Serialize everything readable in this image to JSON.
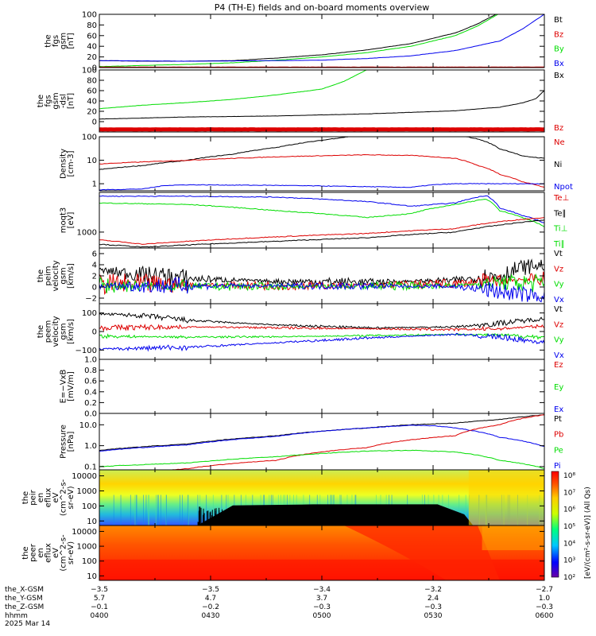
{
  "title": "P4 (TH-E) fields and on-board moments overview",
  "colors": {
    "black": "#000000",
    "red": "#dd0000",
    "green": "#00dd00",
    "blue": "#0000ee",
    "eph_blue": "#0000cc"
  },
  "chart_data": [
    {
      "type": "line",
      "name": "fgs_gsm",
      "ylabel": [
        "the",
        "fgs",
        "gsm",
        "[nT]"
      ],
      "ylim": [
        0,
        100
      ],
      "yticks": [
        "100",
        "80",
        "60",
        "40",
        "20",
        "0"
      ],
      "ytick_values": [
        100,
        80,
        60,
        40,
        20,
        0
      ],
      "legend": [
        {
          "text": "Bt",
          "color": "#000000"
        },
        {
          "text": "Bz",
          "color": "#dd0000"
        },
        {
          "text": "By",
          "color": "#00dd00"
        },
        {
          "text": "Bx",
          "color": "#0000ee"
        }
      ],
      "series": [
        {
          "name": "Bt",
          "color": "#000000",
          "x": [
            0,
            0.1,
            0.2,
            0.3,
            0.4,
            0.5,
            0.6,
            0.7,
            0.8,
            0.85,
            0.9
          ],
          "y": [
            13,
            12,
            12,
            13,
            18,
            24,
            33,
            45,
            65,
            82,
            104
          ]
        },
        {
          "name": "By",
          "color": "#00dd00",
          "x": [
            0,
            0.1,
            0.2,
            0.3,
            0.4,
            0.5,
            0.6,
            0.7,
            0.8,
            0.85,
            0.9
          ],
          "y": [
            2,
            4,
            6,
            9,
            14,
            20,
            28,
            40,
            60,
            78,
            102
          ]
        },
        {
          "name": "Bx",
          "color": "#0000ee",
          "x": [
            0,
            0.2,
            0.4,
            0.5,
            0.6,
            0.7,
            0.8,
            0.9,
            0.95,
            1.0
          ],
          "y": [
            13,
            12,
            13,
            14,
            17,
            22,
            32,
            50,
            72,
            100
          ]
        },
        {
          "name": "Bz",
          "color": "#dd0000",
          "x": [
            0,
            1
          ],
          "y": [
            1,
            1
          ]
        }
      ]
    },
    {
      "type": "line",
      "name": "fgs_dsl",
      "ylabel": [
        "the",
        "fgs",
        "gsm",
        "-dsl",
        "[nT]"
      ],
      "ylim": [
        -20,
        100
      ],
      "yticks": [
        "100",
        "80",
        "60",
        "40",
        "20",
        "0"
      ],
      "ytick_values": [
        100,
        80,
        60,
        40,
        20,
        0
      ],
      "legend": [
        {
          "text": "Bx",
          "color": "#000000"
        },
        {
          "text": "Bz",
          "color": "#dd0000"
        }
      ],
      "series": [
        {
          "name": "green",
          "color": "#00dd00",
          "x": [
            0,
            0.1,
            0.2,
            0.3,
            0.4,
            0.5,
            0.55,
            0.6
          ],
          "y": [
            25,
            32,
            37,
            43,
            52,
            63,
            78,
            100
          ]
        },
        {
          "name": "Bx",
          "color": "#000000",
          "x": [
            0,
            0.2,
            0.4,
            0.6,
            0.8,
            0.9,
            0.95,
            0.98,
            1.0
          ],
          "y": [
            5,
            9,
            11,
            15,
            21,
            28,
            36,
            44,
            60
          ]
        },
        {
          "name": "Bz",
          "color": "#dd0000",
          "x": [
            0,
            1
          ],
          "y": [
            -15,
            -15
          ]
        }
      ]
    },
    {
      "type": "line",
      "name": "density",
      "log": true,
      "ylabel": [
        "Density",
        "[cm-3]"
      ],
      "ylim": [
        0.5,
        100
      ],
      "yticks": [
        "100",
        "10",
        "1"
      ],
      "ytick_values": [
        100,
        10,
        1
      ],
      "legend": [
        {
          "text": "Ne",
          "color": "#dd0000"
        },
        {
          "text": "Ni",
          "color": "#000000"
        },
        {
          "text": "Npot",
          "color": "#0000ee"
        }
      ],
      "series": [
        {
          "name": "Ni",
          "color": "#000000",
          "x": [
            0,
            0.1,
            0.2,
            0.3,
            0.4,
            0.5,
            0.6,
            0.8,
            0.85,
            0.9,
            0.95,
            1.0
          ],
          "y": [
            4,
            6,
            10,
            18,
            35,
            70,
            120,
            120,
            80,
            30,
            15,
            12
          ]
        },
        {
          "name": "Ne",
          "color": "#dd0000",
          "x": [
            0,
            0.2,
            0.4,
            0.6,
            0.7,
            0.8,
            0.85,
            0.9,
            0.95,
            1.0
          ],
          "y": [
            7,
            10,
            14,
            17,
            16,
            12,
            6,
            2.5,
            1.2,
            0.7
          ]
        },
        {
          "name": "Npot",
          "color": "#0000ee",
          "x": [
            0,
            0.1,
            0.15,
            0.2,
            0.4,
            0.6,
            0.7,
            0.75,
            0.8,
            1.0
          ],
          "y": [
            0.55,
            0.6,
            0.85,
            0.9,
            0.85,
            0.75,
            0.7,
            0.9,
            1.0,
            1.0
          ]
        }
      ]
    },
    {
      "type": "line",
      "name": "moms_temperature",
      "log": true,
      "ylabel": [
        "moqt3",
        "[eV]"
      ],
      "ylim": [
        300,
        20000
      ],
      "yticks": [
        "1000"
      ],
      "ytick_values": [
        1000
      ],
      "legend": [
        {
          "text": "Te⊥",
          "color": "#dd0000"
        },
        {
          "text": "Te∥",
          "color": "#000000"
        },
        {
          "text": "Ti⊥",
          "color": "#00dd00"
        },
        {
          "text": "Ti∥",
          "color": "#00dd00"
        }
      ],
      "series": [
        {
          "name": "Ti",
          "color": "#0000ee",
          "x": [
            0,
            0.2,
            0.4,
            0.6,
            0.7,
            0.8,
            0.87,
            0.9,
            0.95,
            1.0
          ],
          "y": [
            15000,
            15000,
            14000,
            10000,
            7000,
            9000,
            16000,
            6000,
            3500,
            2000
          ]
        },
        {
          "name": "Ti∥",
          "color": "#00dd00",
          "x": [
            0,
            0.2,
            0.4,
            0.55,
            0.6,
            0.7,
            0.8,
            0.87,
            0.9,
            0.95,
            1.0
          ],
          "y": [
            9000,
            8000,
            5000,
            3500,
            3000,
            4000,
            8000,
            12000,
            5000,
            3000,
            1500
          ]
        },
        {
          "name": "Te⊥",
          "color": "#dd0000",
          "x": [
            0,
            0.1,
            0.2,
            0.4,
            0.6,
            0.8,
            0.9,
            1.0
          ],
          "y": [
            550,
            400,
            500,
            700,
            900,
            1300,
            2200,
            3000
          ]
        },
        {
          "name": "Te∥",
          "color": "#000000",
          "x": [
            0,
            0.1,
            0.2,
            0.4,
            0.6,
            0.8,
            0.9,
            1.0
          ],
          "y": [
            400,
            320,
            380,
            500,
            650,
            1000,
            1700,
            2500
          ]
        }
      ]
    },
    {
      "type": "line",
      "name": "peim_velocity",
      "noisy": true,
      "ylabel": [
        "the",
        "peim",
        "velocity",
        "gsm",
        "[km/s]"
      ],
      "ylim": [
        -3,
        7
      ],
      "yticks": [
        "6",
        "4",
        "2",
        "0",
        "−2"
      ],
      "ytick_values": [
        6,
        4,
        2,
        0,
        -2
      ],
      "legend": [
        {
          "text": "Vt",
          "color": "#000000"
        },
        {
          "text": "Vz",
          "color": "#dd0000"
        },
        {
          "text": "Vy",
          "color": "#00dd00"
        },
        {
          "text": "Vx",
          "color": "#0000ee"
        }
      ],
      "series": [
        {
          "name": "Vt",
          "color": "#000000",
          "x": [
            0,
            0.1,
            0.2,
            0.4,
            0.6,
            0.8,
            0.9,
            0.95,
            1.0
          ],
          "y": [
            3,
            2.2,
            1.5,
            1,
            0.9,
            1.2,
            2,
            3.5,
            4
          ],
          "noise": 0.9
        },
        {
          "name": "Vz",
          "color": "#dd0000",
          "x": [
            0,
            0.2,
            0.5,
            0.8,
            0.9,
            1.0
          ],
          "y": [
            0.5,
            0.4,
            0.2,
            0.6,
            1.2,
            1.5
          ],
          "noise": 1.0
        },
        {
          "name": "Vy",
          "color": "#00dd00",
          "x": [
            0,
            0.2,
            0.5,
            0.8,
            0.9,
            1.0
          ],
          "y": [
            0.3,
            0.1,
            0.1,
            0.3,
            0.8,
            0.6
          ],
          "noise": 0.9
        },
        {
          "name": "Vx",
          "color": "#0000ee",
          "x": [
            0,
            0.2,
            0.5,
            0.8,
            0.9,
            1.0
          ],
          "y": [
            0.2,
            0.2,
            0.2,
            0.1,
            -0.8,
            -1.8
          ],
          "noise": 0.8
        }
      ]
    },
    {
      "type": "line",
      "name": "peem_velocity",
      "noisy": true,
      "ylabel": [
        "the",
        "peem",
        "velocity",
        "gsm",
        "[km/s]"
      ],
      "ylim": [
        -150,
        150
      ],
      "yticks": [
        "100",
        "0",
        "−100"
      ],
      "ytick_values": [
        100,
        0,
        -100
      ],
      "legend": [
        {
          "text": "Vt",
          "color": "#000000"
        },
        {
          "text": "Vz",
          "color": "#dd0000"
        },
        {
          "text": "Vy",
          "color": "#00dd00"
        },
        {
          "text": "Vx",
          "color": "#0000ee"
        }
      ],
      "series": [
        {
          "name": "Vt",
          "color": "#000000",
          "x": [
            0,
            0.1,
            0.2,
            0.4,
            0.6,
            0.8,
            0.9,
            1.0
          ],
          "y": [
            95,
            85,
            60,
            35,
            20,
            25,
            45,
            70
          ],
          "noise": 8
        },
        {
          "name": "Vz",
          "color": "#dd0000",
          "x": [
            0,
            0.2,
            0.4,
            0.6,
            0.8,
            0.9,
            1.0
          ],
          "y": [
            20,
            25,
            20,
            15,
            10,
            15,
            30
          ],
          "noise": 8
        },
        {
          "name": "Vy",
          "color": "#00dd00",
          "x": [
            0,
            0.2,
            0.4,
            0.6,
            0.8,
            0.9,
            1.0
          ],
          "y": [
            -25,
            -30,
            -28,
            -22,
            -15,
            -20,
            -30
          ],
          "noise": 6
        },
        {
          "name": "Vx",
          "color": "#0000ee",
          "x": [
            0,
            0.2,
            0.4,
            0.6,
            0.8,
            0.9,
            1.0
          ],
          "y": [
            -95,
            -85,
            -60,
            -35,
            -15,
            -30,
            -60
          ],
          "noise": 8
        }
      ]
    },
    {
      "type": "line",
      "name": "efield",
      "ylabel": [
        "E=−VxB",
        "[mV/m]"
      ],
      "ylim": [
        0,
        1
      ],
      "yticks": [
        "1.0",
        "0.8",
        "0.6",
        "0.4",
        "0.2",
        "0.0"
      ],
      "ytick_values": [
        1,
        0.8,
        0.6,
        0.4,
        0.2,
        0
      ],
      "legend": [
        {
          "text": "Ez",
          "color": "#dd0000"
        },
        {
          "text": "Ey",
          "color": "#00dd00"
        },
        {
          "text": "Ex",
          "color": "#0000ee"
        }
      ],
      "series": []
    },
    {
      "type": "line",
      "name": "pressure",
      "log": true,
      "ylabel": [
        "Pressure",
        "[nPa]"
      ],
      "ylim": [
        0.07,
        35
      ],
      "yticks": [
        "10.0",
        "1.0",
        "0.1"
      ],
      "ytick_values": [
        10,
        1,
        0.1
      ],
      "legend": [
        {
          "text": "Pt",
          "color": "#000000"
        },
        {
          "text": "Pb",
          "color": "#dd0000"
        },
        {
          "text": "Pe",
          "color": "#00dd00"
        },
        {
          "text": "Pi",
          "color": "#0000ee"
        }
      ],
      "series": [
        {
          "name": "Pt",
          "color": "#000000",
          "x": [
            0,
            0.2,
            0.4,
            0.6,
            0.7,
            0.8,
            0.9,
            1.0
          ],
          "y": [
            0.6,
            1.2,
            3,
            7,
            10,
            12,
            18,
            30
          ]
        },
        {
          "name": "Pi",
          "color": "#0000ee",
          "x": [
            0,
            0.2,
            0.4,
            0.6,
            0.7,
            0.75,
            0.8,
            0.9,
            1.0
          ],
          "y": [
            0.55,
            1.1,
            2.8,
            7,
            9.5,
            9,
            7,
            2.5,
            0.9
          ]
        },
        {
          "name": "Pb",
          "color": "#dd0000",
          "x": [
            0,
            0.1,
            0.2,
            0.4,
            0.6,
            0.8,
            0.9,
            1.0
          ],
          "y": [
            0.06,
            0.05,
            0.08,
            0.2,
            0.8,
            3,
            10,
            30
          ]
        },
        {
          "name": "Pe",
          "color": "#00dd00",
          "x": [
            0,
            0.2,
            0.4,
            0.6,
            0.7,
            0.8,
            0.9,
            1.0
          ],
          "y": [
            0.1,
            0.15,
            0.3,
            0.55,
            0.6,
            0.5,
            0.2,
            0.08
          ]
        }
      ]
    },
    {
      "type": "heatmap",
      "name": "peir_en_eflux",
      "ylabel": [
        "the",
        "peir",
        "en",
        "eflux",
        "eV",
        "(cm^2-s-",
        "sr-eV)"
      ],
      "yticks": [
        "10000",
        "1000",
        "100",
        "10"
      ],
      "ytick_values": [
        10000,
        1000,
        100,
        10
      ],
      "ylim": [
        5,
        25000
      ]
    },
    {
      "type": "heatmap",
      "name": "peer_en_eflux",
      "ylabel": [
        "the",
        "peer",
        "en",
        "eflux",
        "eV",
        "(cm^2-s-",
        "sr-eV)"
      ],
      "yticks": [
        "10000",
        "1000",
        "100",
        "10"
      ],
      "ytick_values": [
        10000,
        1000,
        100,
        10
      ],
      "ylim": [
        5,
        25000
      ]
    }
  ],
  "colorbar": {
    "labels": [
      "10⁸",
      "10⁷",
      "10⁶",
      "10⁵",
      "10⁴",
      "10³",
      "10²"
    ],
    "axis_title": "[eV/(cm²-s-sr-eV)] (All Qs)"
  },
  "ephemeris": {
    "rows": [
      {
        "label": "the_X-GSM",
        "values": [
          "−3.5",
          "−3.5",
          "−3.4",
          "−3.2",
          "−2.7"
        ]
      },
      {
        "label": "the_Y-GSM",
        "values": [
          "5.7",
          "4.7",
          "3.7",
          "2.4",
          "1.0"
        ]
      },
      {
        "label": "the_Z-GSM",
        "values": [
          "−0.1",
          "−0.2",
          "−0.3",
          "−0.3",
          "−0.3"
        ]
      },
      {
        "label": "hhmm",
        "values": [
          "0400",
          "0430",
          "0500",
          "0530",
          "0600"
        ]
      }
    ],
    "date": "2025 Mar 14"
  }
}
